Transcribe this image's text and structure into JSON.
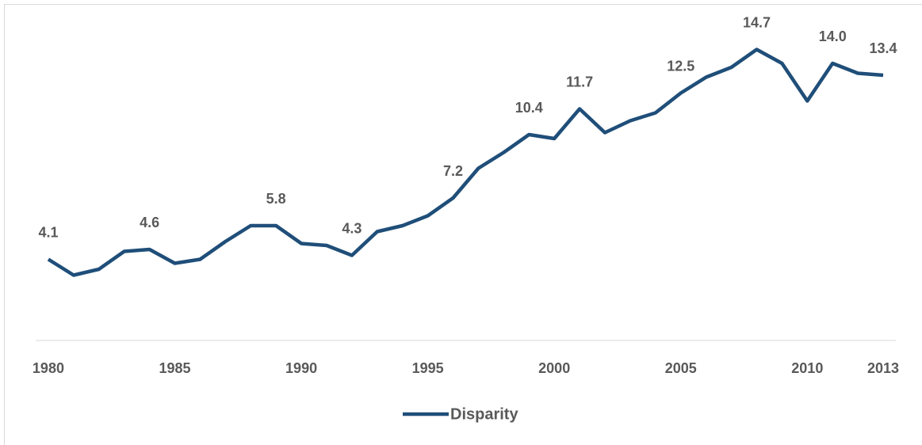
{
  "chart_data": {
    "type": "line",
    "x": [
      1980,
      1981,
      1982,
      1983,
      1984,
      1985,
      1986,
      1987,
      1988,
      1989,
      1990,
      1991,
      1992,
      1993,
      1994,
      1995,
      1996,
      1997,
      1998,
      1999,
      2000,
      2001,
      2002,
      2003,
      2004,
      2005,
      2006,
      2007,
      2008,
      2009,
      2010,
      2011,
      2012,
      2013
    ],
    "series": [
      {
        "name": "Disparity",
        "color": "#1f4e79",
        "values": [
          4.1,
          3.3,
          3.6,
          4.5,
          4.6,
          3.9,
          4.1,
          5.0,
          5.8,
          5.8,
          4.9,
          4.8,
          4.3,
          5.5,
          5.8,
          6.3,
          7.2,
          8.7,
          9.5,
          10.4,
          10.2,
          11.7,
          10.5,
          11.1,
          11.5,
          12.5,
          13.3,
          13.8,
          14.7,
          14.0,
          12.1,
          14.0,
          13.5,
          13.4
        ],
        "value_labels": [
          "4.1",
          null,
          null,
          null,
          "4.6",
          null,
          null,
          null,
          null,
          "5.8",
          null,
          null,
          "4.3",
          null,
          null,
          null,
          "7.2",
          null,
          null,
          "10.4",
          null,
          "11.7",
          null,
          null,
          null,
          "12.5",
          null,
          null,
          "14.7",
          null,
          null,
          "14.0",
          null,
          "13.4"
        ]
      }
    ],
    "xlim": [
      1979.5,
      2013.5
    ],
    "xticks": [
      1980,
      1985,
      1990,
      1995,
      2000,
      2005,
      2010,
      2013
    ],
    "ylim": [
      0,
      17
    ],
    "legend": "bottom"
  }
}
